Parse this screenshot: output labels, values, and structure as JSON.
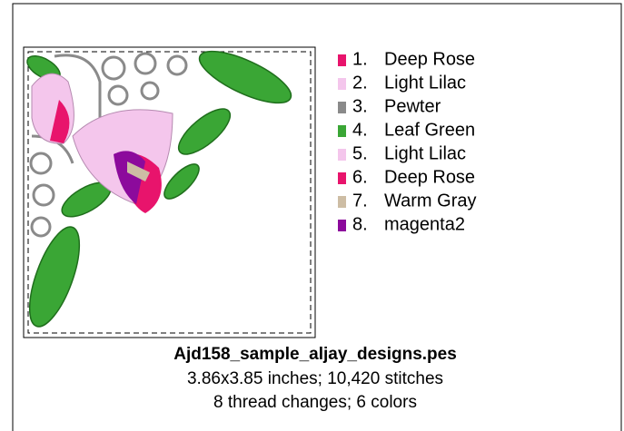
{
  "file": {
    "name": "Ajd158_sample_aljay_designs.pes",
    "size_line": "3.86x3.85 inches; 10,420 stitches",
    "colors_line": "8 thread changes; 6 colors"
  },
  "threads": [
    {
      "number": "1.",
      "name": "Deep Rose",
      "color": "#e8146c"
    },
    {
      "number": "2.",
      "name": "Light Lilac",
      "color": "#f4c6ec"
    },
    {
      "number": "3.",
      "name": "Pewter",
      "color": "#8a8a8a"
    },
    {
      "number": "4.",
      "name": "Leaf Green",
      "color": "#3aa635"
    },
    {
      "number": "5.",
      "name": "Light Lilac",
      "color": "#f4c6ec"
    },
    {
      "number": "6.",
      "name": "Deep Rose",
      "color": "#e8146c"
    },
    {
      "number": "7.",
      "name": "Warm Gray",
      "color": "#cdbda4"
    },
    {
      "number": "8.",
      "name": "magenta2",
      "color": "#8c0a9c"
    }
  ]
}
